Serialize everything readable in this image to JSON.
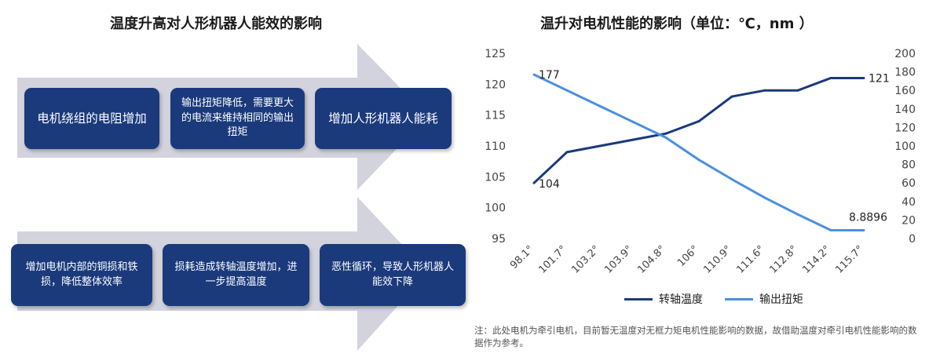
{
  "left_panel": {
    "title": "温度升高对人形机器人能效的影响",
    "row1": [
      "电机绕组的电阻增加",
      "输出扭矩降低，需要更大的电流来维持相同的输出扭矩",
      "增加人形机器人能耗"
    ],
    "row2": [
      "增加电机内部的铜损和铁损，降低整体效率",
      "损耗造成转轴温度增加，进一步提高温度",
      "恶性循环，导致人形机器人能效下降"
    ],
    "colors": {
      "box": "#1a3a7c",
      "arrow": "#d2d3dd"
    }
  },
  "right_panel": {
    "title": "温升对电机性能的影响（单位：℃，nm ）",
    "note": "注：此处电机为牵引电机，目前暂无温度对无框力矩电机性能影响的数据，故借助温度对牵引电机性能影响的数据作为参考。"
  },
  "chart_data": {
    "type": "line",
    "title": "温升对电机性能的影响（单位：℃，nm ）",
    "categories": [
      "98.1°",
      "101.7°",
      "103.2°",
      "103.9°",
      "104.8°",
      "106°",
      "110.9°",
      "111.6°",
      "112.8°",
      "114.2°",
      "115.7°"
    ],
    "series": [
      {
        "name": "转轴温度",
        "axis": "left",
        "color": "#1a3a7c",
        "values": [
          104,
          109,
          110,
          111,
          112,
          114,
          118,
          119,
          119,
          121,
          121
        ]
      },
      {
        "name": "输出扭矩",
        "axis": "right",
        "color": "#4a8fe0",
        "values": [
          177,
          160,
          143,
          126,
          109,
          85,
          64,
          44,
          26,
          9,
          8.8896
        ]
      }
    ],
    "left_axis": {
      "ylim": [
        95,
        125
      ],
      "ticks": [
        95,
        100,
        105,
        110,
        115,
        120,
        125
      ]
    },
    "right_axis": {
      "ylim": [
        0,
        200
      ],
      "ticks": [
        0,
        20,
        40,
        60,
        80,
        100,
        120,
        140,
        160,
        180,
        200
      ]
    },
    "data_labels": [
      {
        "series": 0,
        "index": 0,
        "text": "104"
      },
      {
        "series": 0,
        "index": 10,
        "text": "121"
      },
      {
        "series": 1,
        "index": 0,
        "text": "177"
      },
      {
        "series": 1,
        "index": 10,
        "text": "8.8896"
      }
    ],
    "grid": false,
    "legend": "bottom"
  }
}
